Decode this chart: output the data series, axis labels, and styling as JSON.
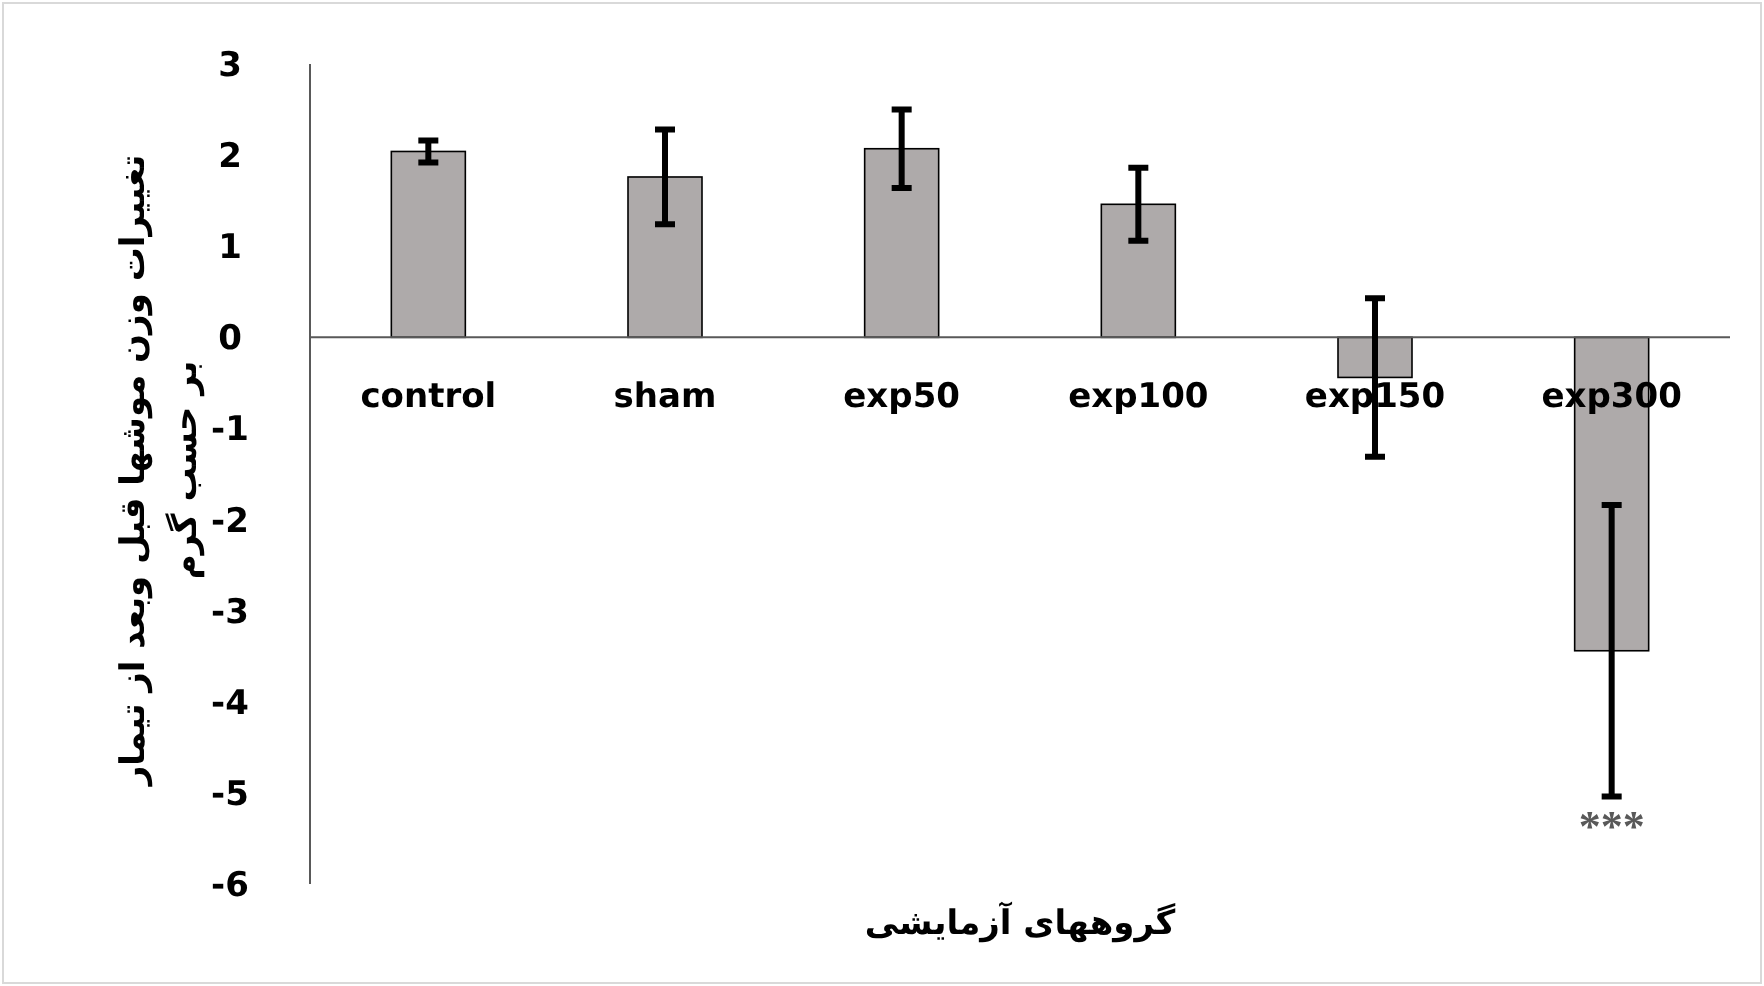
{
  "chart_data": {
    "type": "bar",
    "xlabel": "گروههای آزمایشی",
    "ylabel": "تغییرات وزن موشها قبل وبعد از تیمار بر حسب گرم",
    "categories": [
      "control",
      "sham",
      "exp50",
      "exp100",
      "exp150",
      "exp300"
    ],
    "values": [
      2.04,
      1.76,
      2.07,
      1.46,
      -0.44,
      -3.44
    ],
    "errors": [
      0.12,
      0.52,
      0.43,
      0.4,
      0.87,
      1.6
    ],
    "color": "#aeaaaa",
    "ylim": [
      -6,
      3
    ],
    "yticks": [
      -6,
      -5,
      -4,
      -3,
      -2,
      -1,
      0,
      1,
      2,
      3
    ],
    "annotations": [
      "***"
    ]
  }
}
